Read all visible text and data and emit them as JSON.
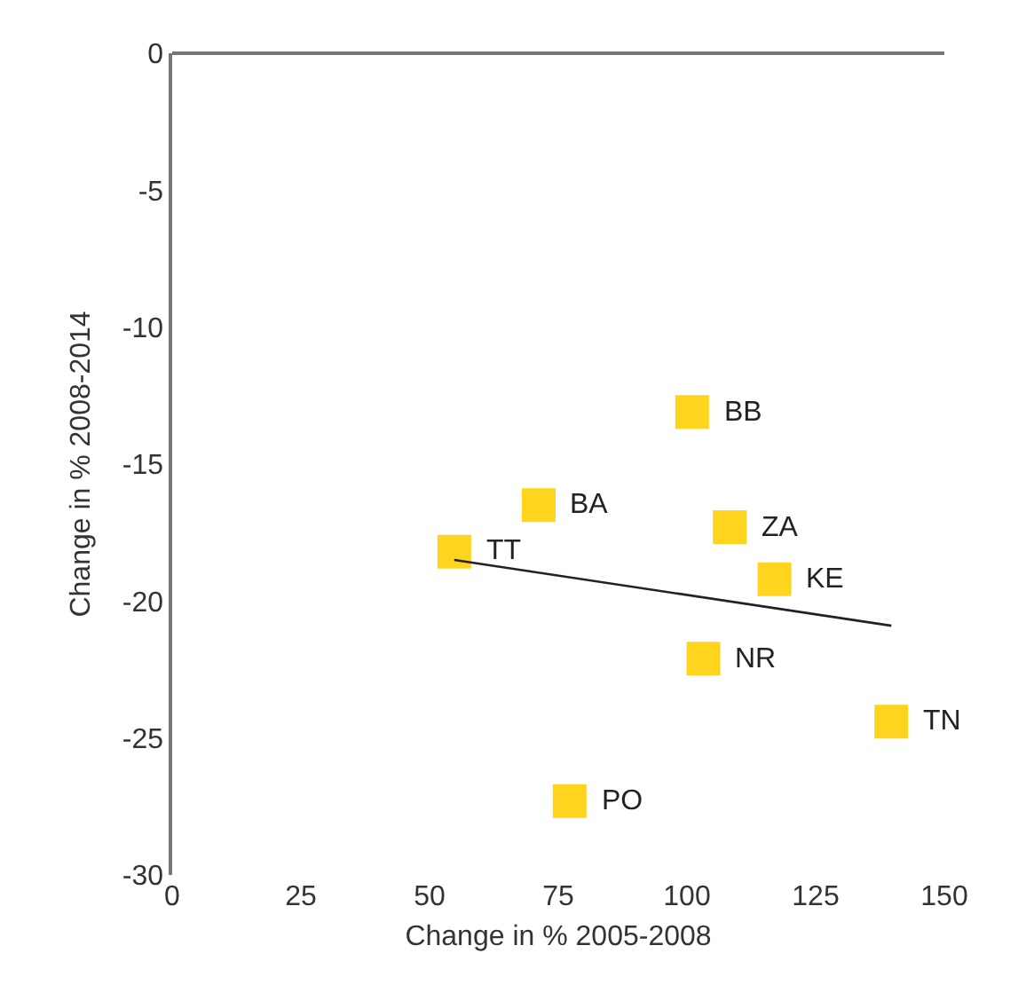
{
  "chart_data": {
    "type": "scatter",
    "xlabel": "Change in % 2005-2008",
    "ylabel": "Change in % 2008-2014",
    "xlim": [
      0,
      150
    ],
    "xticks": [
      0,
      25,
      50,
      75,
      100,
      125,
      150
    ],
    "ylim": [
      -30,
      0
    ],
    "yticks": [
      -30,
      -25,
      -20,
      -15,
      -10,
      -5,
      0
    ],
    "grid": false,
    "series": [
      {
        "marker": "square",
        "color": "#ffd41f",
        "x": [
          101,
          71.2,
          54.8,
          108.3,
          117,
          103.2,
          139.7,
          77.2
        ],
        "values": [
          -13.1,
          -16.5,
          -18.2,
          -17.3,
          -19.2,
          -22.1,
          -24.4,
          -27.3
        ]
      },
      {
        "type": "line",
        "marker": "none",
        "color": "#222222",
        "x": [
          54.8,
          139.7
        ],
        "values": [
          -18.5,
          -20.9
        ]
      }
    ],
    "annotations": [
      {
        "text": "BB",
        "x": 101,
        "y": -13.1
      },
      {
        "text": "BA",
        "x": 71.2,
        "y": -16.5
      },
      {
        "text": "TT",
        "x": 54.8,
        "y": -18.2
      },
      {
        "text": "ZA",
        "x": 108.3,
        "y": -17.3
      },
      {
        "text": "KE",
        "x": 117,
        "y": -19.2
      },
      {
        "text": "NR",
        "x": 103.2,
        "y": -22.1
      },
      {
        "text": "TN",
        "x": 139.7,
        "y": -24.4
      },
      {
        "text": "PO",
        "x": 77.2,
        "y": -27.3
      }
    ]
  }
}
